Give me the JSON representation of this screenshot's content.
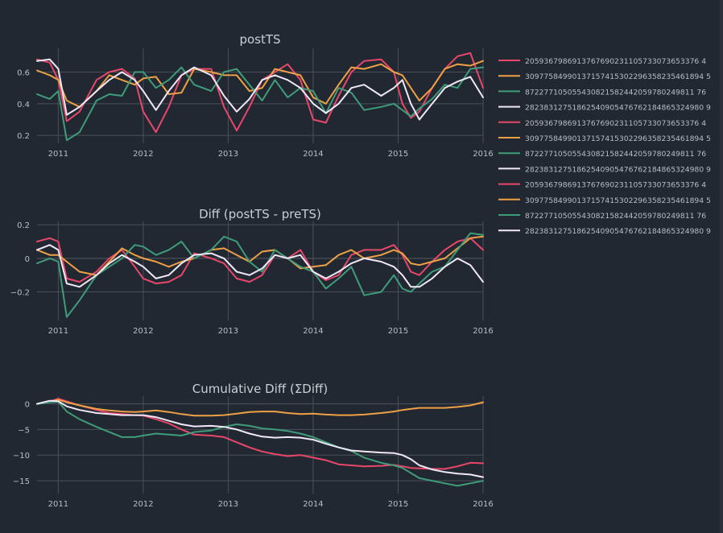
{
  "colors": {
    "background": "#222831",
    "grid": "#4a505a",
    "text": "#b8bec6",
    "title": "#c9cfd6"
  },
  "legend": {
    "items": [
      {
        "label": "2059367986913767690231105733073653376 4",
        "color": "#e8476a"
      },
      {
        "label": "30977584990137157415302296358235461894 5",
        "color": "#eea045"
      },
      {
        "label": "872277105055430821582442059780249811 76",
        "color": "#3f9c7a"
      },
      {
        "label": "28238312751862540905476762184865324980 9",
        "color": "#f0e8f6"
      },
      {
        "label": "2059367986913767690231105733073653376 4",
        "color": "#e8476a"
      },
      {
        "label": "30977584990137157415302296358235461894 5",
        "color": "#eea045"
      },
      {
        "label": "872277105055430821582442059780249811 76",
        "color": "#3f9c7a"
      },
      {
        "label": "28238312751862540905476762184865324980 9",
        "color": "#f0e8f6"
      },
      {
        "label": "2059367986913767690231105733073653376 4",
        "color": "#e8476a"
      },
      {
        "label": "30977584990137157415302296358235461894 5",
        "color": "#eea045"
      },
      {
        "label": "872277105055430821582442059780249811 76",
        "color": "#3f9c7a"
      },
      {
        "label": "28238312751862540905476762184865324980 9",
        "color": "#f0e8f6"
      }
    ]
  },
  "chart_data": [
    {
      "type": "line",
      "title": "postTS",
      "xlim": [
        2010.75,
        2016.0
      ],
      "ylim": [
        0.15,
        0.75
      ],
      "x_ticks": [
        "2011",
        "2012",
        "2013",
        "2014",
        "2015",
        "2016"
      ],
      "y_ticks": [
        0.2,
        0.4,
        0.6
      ],
      "y_tick_labels": [
        "0.2",
        "0.4",
        "0.6"
      ],
      "grid": true,
      "x": [
        2010.75,
        2010.9,
        2011.0,
        2011.1,
        2011.25,
        2011.45,
        2011.6,
        2011.75,
        2011.9,
        2012.0,
        2012.15,
        2012.3,
        2012.45,
        2012.6,
        2012.8,
        2012.95,
        2013.1,
        2013.25,
        2013.4,
        2013.55,
        2013.7,
        2013.85,
        2014.0,
        2014.15,
        2014.3,
        2014.45,
        2014.6,
        2014.8,
        2014.95,
        2015.05,
        2015.15,
        2015.25,
        2015.4,
        2015.55,
        2015.7,
        2015.85,
        2016.0
      ],
      "series": [
        {
          "name": "2059367986913767690231105733073653376 4",
          "color": "#e8476a",
          "values": [
            0.68,
            0.66,
            0.55,
            0.29,
            0.35,
            0.55,
            0.6,
            0.62,
            0.56,
            0.35,
            0.22,
            0.38,
            0.58,
            0.62,
            0.62,
            0.38,
            0.23,
            0.38,
            0.55,
            0.6,
            0.65,
            0.55,
            0.3,
            0.28,
            0.45,
            0.6,
            0.67,
            0.68,
            0.6,
            0.4,
            0.31,
            0.35,
            0.5,
            0.62,
            0.7,
            0.72,
            0.5
          ]
        },
        {
          "name": "30977584990137157415302296358235461894 5",
          "color": "#eea045",
          "values": [
            0.61,
            0.58,
            0.55,
            0.42,
            0.38,
            0.48,
            0.58,
            0.55,
            0.52,
            0.56,
            0.57,
            0.46,
            0.47,
            0.62,
            0.6,
            0.58,
            0.58,
            0.48,
            0.5,
            0.62,
            0.6,
            0.58,
            0.44,
            0.4,
            0.52,
            0.63,
            0.62,
            0.65,
            0.6,
            0.58,
            0.5,
            0.42,
            0.5,
            0.62,
            0.65,
            0.64,
            0.67
          ]
        },
        {
          "name": "872277105055430821582442059780249811 76",
          "color": "#3f9c7a",
          "values": [
            0.46,
            0.43,
            0.48,
            0.17,
            0.22,
            0.42,
            0.46,
            0.45,
            0.6,
            0.6,
            0.5,
            0.55,
            0.63,
            0.52,
            0.48,
            0.6,
            0.62,
            0.52,
            0.42,
            0.55,
            0.44,
            0.5,
            0.48,
            0.34,
            0.5,
            0.47,
            0.36,
            0.38,
            0.4,
            0.36,
            0.32,
            0.37,
            0.43,
            0.52,
            0.5,
            0.62,
            0.63
          ]
        },
        {
          "name": "28238312751862540905476762184865324980 9",
          "color": "#f0e8f6",
          "values": [
            0.67,
            0.68,
            0.62,
            0.33,
            0.38,
            0.48,
            0.55,
            0.6,
            0.55,
            0.48,
            0.36,
            0.48,
            0.58,
            0.63,
            0.58,
            0.45,
            0.35,
            0.43,
            0.55,
            0.58,
            0.55,
            0.5,
            0.4,
            0.34,
            0.4,
            0.5,
            0.52,
            0.45,
            0.5,
            0.55,
            0.4,
            0.3,
            0.4,
            0.5,
            0.54,
            0.57,
            0.44
          ]
        }
      ]
    },
    {
      "type": "line",
      "title": "Diff (postTS - preTS)",
      "xlim": [
        2010.75,
        2016.0
      ],
      "ylim": [
        -0.37,
        0.22
      ],
      "x_ticks": [
        "2011",
        "2012",
        "2013",
        "2014",
        "2015",
        "2016"
      ],
      "y_ticks": [
        -0.2,
        0,
        0.2
      ],
      "y_tick_labels": [
        "−0.2",
        "0",
        "0.2"
      ],
      "grid": true,
      "x": [
        2010.75,
        2010.9,
        2011.0,
        2011.1,
        2011.25,
        2011.45,
        2011.6,
        2011.75,
        2011.9,
        2012.0,
        2012.15,
        2012.3,
        2012.45,
        2012.6,
        2012.8,
        2012.95,
        2013.1,
        2013.25,
        2013.4,
        2013.55,
        2013.7,
        2013.85,
        2014.0,
        2014.15,
        2014.3,
        2014.45,
        2014.6,
        2014.8,
        2014.95,
        2015.05,
        2015.15,
        2015.25,
        2015.4,
        2015.55,
        2015.7,
        2015.85,
        2016.0
      ],
      "series": [
        {
          "name": "2059367986913767690231105733073653376 4",
          "color": "#e8476a",
          "values": [
            0.1,
            0.12,
            0.1,
            -0.12,
            -0.14,
            -0.08,
            0.0,
            0.05,
            -0.05,
            -0.12,
            -0.15,
            -0.14,
            -0.1,
            0.03,
            0.0,
            -0.03,
            -0.12,
            -0.14,
            -0.1,
            0.02,
            0.0,
            0.05,
            -0.08,
            -0.13,
            -0.1,
            0.02,
            0.05,
            0.05,
            0.08,
            0.02,
            -0.08,
            -0.1,
            -0.02,
            0.05,
            0.1,
            0.12,
            0.05
          ]
        },
        {
          "name": "30977584990137157415302296358235461894 5",
          "color": "#eea045",
          "values": [
            0.05,
            0.02,
            0.02,
            -0.02,
            -0.08,
            -0.1,
            -0.02,
            0.06,
            0.02,
            0.0,
            -0.02,
            -0.05,
            -0.02,
            0.0,
            0.05,
            0.06,
            0.02,
            -0.02,
            0.04,
            0.05,
            0.0,
            -0.06,
            -0.05,
            -0.04,
            0.02,
            0.05,
            0.0,
            0.02,
            0.05,
            0.03,
            -0.03,
            -0.04,
            -0.02,
            0.0,
            0.06,
            0.12,
            0.13
          ]
        },
        {
          "name": "872277105055430821582442059780249811 76",
          "color": "#3f9c7a",
          "values": [
            -0.03,
            0.0,
            -0.02,
            -0.35,
            -0.25,
            -0.1,
            -0.05,
            0.0,
            0.08,
            0.07,
            0.02,
            0.05,
            0.1,
            0.0,
            0.05,
            0.13,
            0.1,
            -0.02,
            -0.08,
            0.05,
            0.0,
            -0.05,
            -0.08,
            -0.18,
            -0.12,
            -0.05,
            -0.22,
            -0.2,
            -0.1,
            -0.18,
            -0.2,
            -0.15,
            -0.08,
            -0.05,
            0.05,
            0.15,
            0.14
          ]
        },
        {
          "name": "28238312751862540905476762184865324980 9",
          "color": "#f0e8f6",
          "values": [
            0.05,
            0.08,
            0.05,
            -0.15,
            -0.17,
            -0.1,
            -0.03,
            0.02,
            -0.02,
            -0.05,
            -0.12,
            -0.1,
            -0.03,
            0.02,
            0.03,
            0.0,
            -0.08,
            -0.1,
            -0.06,
            0.02,
            0.0,
            0.02,
            -0.08,
            -0.12,
            -0.08,
            -0.03,
            0.0,
            -0.02,
            -0.05,
            -0.1,
            -0.17,
            -0.17,
            -0.12,
            -0.05,
            0.0,
            -0.04,
            -0.14
          ]
        }
      ]
    },
    {
      "type": "line",
      "title": "Cumulative Diff (ΣDiff)",
      "xlim": [
        2010.75,
        2016.0
      ],
      "ylim": [
        -17.5,
        1.5
      ],
      "x_ticks": [
        "2011",
        "2012",
        "2013",
        "2014",
        "2015",
        "2016"
      ],
      "y_ticks": [
        -15,
        -10,
        -5,
        0
      ],
      "y_tick_labels": [
        "−15",
        "−10",
        "−5",
        "0"
      ],
      "grid": true,
      "x": [
        2010.75,
        2010.9,
        2011.0,
        2011.1,
        2011.25,
        2011.45,
        2011.6,
        2011.75,
        2011.9,
        2012.0,
        2012.15,
        2012.3,
        2012.45,
        2012.6,
        2012.8,
        2012.95,
        2013.1,
        2013.25,
        2013.4,
        2013.55,
        2013.7,
        2013.85,
        2014.0,
        2014.15,
        2014.3,
        2014.45,
        2014.6,
        2014.8,
        2014.95,
        2015.05,
        2015.15,
        2015.25,
        2015.4,
        2015.55,
        2015.7,
        2015.85,
        2016.0
      ],
      "series": [
        {
          "name": "2059367986913767690231105733073653376 4",
          "color": "#e8476a",
          "values": [
            0.0,
            0.5,
            1.0,
            0.5,
            -0.3,
            -1.2,
            -1.8,
            -2.0,
            -2.2,
            -2.3,
            -3.0,
            -3.8,
            -5.0,
            -6.0,
            -6.2,
            -6.5,
            -7.5,
            -8.5,
            -9.3,
            -9.8,
            -10.2,
            -10.0,
            -10.5,
            -11.0,
            -11.8,
            -12.0,
            -12.2,
            -12.1,
            -11.9,
            -12.2,
            -12.5,
            -12.6,
            -12.7,
            -12.7,
            -12.2,
            -11.5,
            -11.6
          ]
        },
        {
          "name": "30977584990137157415302296358235461894 5",
          "color": "#eea045",
          "values": [
            0.0,
            0.4,
            0.8,
            0.3,
            -0.3,
            -1.0,
            -1.3,
            -1.5,
            -1.6,
            -1.5,
            -1.3,
            -1.6,
            -2.0,
            -2.3,
            -2.3,
            -2.2,
            -1.9,
            -1.6,
            -1.5,
            -1.5,
            -1.8,
            -2.0,
            -1.9,
            -2.1,
            -2.2,
            -2.2,
            -2.1,
            -1.8,
            -1.5,
            -1.2,
            -1.0,
            -0.8,
            -0.8,
            -0.8,
            -0.6,
            -0.3,
            0.3
          ]
        },
        {
          "name": "872277105055430821582442059780249811 76",
          "color": "#3f9c7a",
          "values": [
            0.0,
            0.3,
            0.4,
            -1.5,
            -3.0,
            -4.5,
            -5.5,
            -6.5,
            -6.5,
            -6.2,
            -5.8,
            -6.0,
            -6.2,
            -5.5,
            -5.2,
            -4.5,
            -4.0,
            -4.3,
            -4.8,
            -5.0,
            -5.3,
            -5.8,
            -6.5,
            -7.5,
            -8.5,
            -9.2,
            -10.5,
            -11.5,
            -12.0,
            -12.5,
            -13.5,
            -14.5,
            -15.0,
            -15.5,
            -16.0,
            -15.5,
            -15.0
          ]
        },
        {
          "name": "28238312751862540905476762184865324980 9",
          "color": "#f0e8f6",
          "values": [
            0.0,
            0.6,
            0.5,
            -0.5,
            -1.2,
            -1.8,
            -2.0,
            -2.2,
            -2.2,
            -2.2,
            -2.6,
            -3.3,
            -4.0,
            -4.4,
            -4.3,
            -4.5,
            -5.0,
            -5.8,
            -6.4,
            -6.6,
            -6.5,
            -6.6,
            -7.0,
            -7.8,
            -8.5,
            -9.1,
            -9.3,
            -9.5,
            -9.6,
            -10.0,
            -10.8,
            -12.0,
            -12.8,
            -13.3,
            -13.6,
            -13.8,
            -14.3
          ]
        }
      ]
    }
  ]
}
